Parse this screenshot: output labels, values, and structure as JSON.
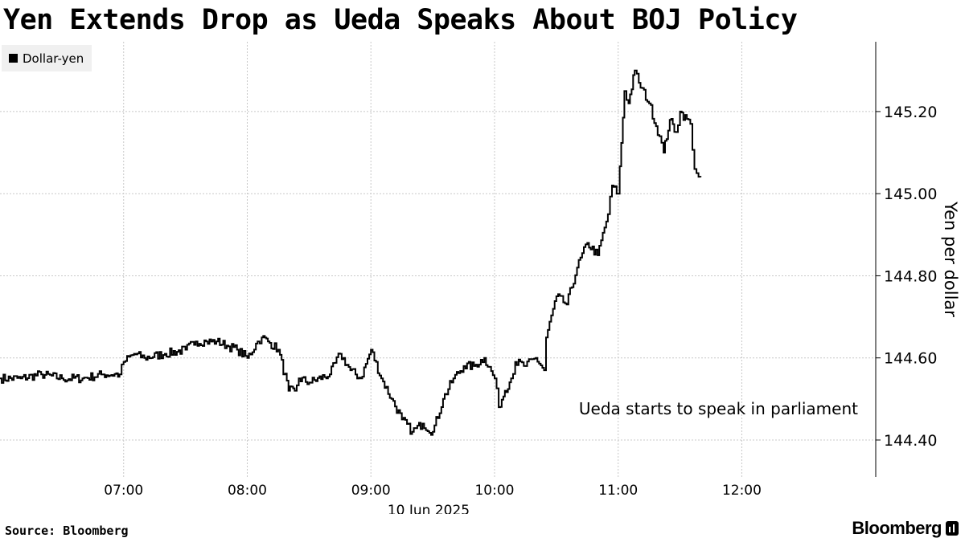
{
  "page": {
    "source": "Source: Bloomberg",
    "brand": "Bloomberg",
    "brand_icon": "bloomberg-terminal-icon"
  },
  "chart_data": {
    "type": "line",
    "title": "Yen Extends Drop as Ueda Speaks About BOJ Policy",
    "xlabel": "10 Jun 2025",
    "ylabel": "Yen per dollar",
    "y_ticks": [
      "144.40",
      "144.60",
      "144.80",
      "145.00",
      "145.20"
    ],
    "x_ticks": [
      "07:00",
      "08:00",
      "09:00",
      "10:00",
      "11:00",
      "12:00"
    ],
    "ylim": [
      144.31,
      145.37
    ],
    "xlim": [
      "06:00",
      "13:05"
    ],
    "grid": true,
    "legend_position": "top-left",
    "annotation": {
      "text": "Ueda starts to speak in parliament",
      "x": "11:00"
    },
    "colors": {
      "line": "#000000",
      "grid": "#c8c8c8"
    },
    "series": [
      {
        "name": "Dollar-yen",
        "x": [
          "06:00",
          "06:10",
          "06:20",
          "06:30",
          "06:40",
          "06:50",
          "06:58",
          "07:00",
          "07:05",
          "07:10",
          "07:20",
          "07:30",
          "07:35",
          "07:40",
          "07:45",
          "07:50",
          "07:55",
          "08:00",
          "08:05",
          "08:07",
          "08:10",
          "08:15",
          "08:20",
          "08:23",
          "08:25",
          "08:30",
          "08:40",
          "08:45",
          "08:50",
          "08:55",
          "09:00",
          "09:05",
          "09:10",
          "09:15",
          "09:20",
          "09:25",
          "09:30",
          "09:35",
          "09:40",
          "09:45",
          "09:50",
          "09:55",
          "10:00",
          "10:02",
          "10:05",
          "10:08",
          "10:10",
          "10:15",
          "10:20",
          "10:24",
          "10:25",
          "10:30",
          "10:35",
          "10:40",
          "10:45",
          "10:50",
          "10:55",
          "10:57",
          "11:00",
          "11:03",
          "11:05",
          "11:08",
          "11:10",
          "11:15",
          "11:20",
          "11:22",
          "11:25",
          "11:28",
          "11:30",
          "11:35",
          "11:37",
          "11:38",
          "11:40"
        ],
        "y": [
          144.55,
          144.55,
          144.56,
          144.55,
          144.55,
          144.56,
          144.56,
          144.59,
          144.61,
          144.6,
          144.61,
          144.62,
          144.64,
          144.64,
          144.64,
          144.63,
          144.62,
          144.6,
          144.64,
          144.65,
          144.64,
          144.62,
          144.52,
          144.52,
          144.55,
          144.54,
          144.56,
          144.61,
          144.57,
          144.55,
          144.62,
          144.55,
          144.5,
          144.45,
          144.42,
          144.44,
          144.42,
          144.5,
          144.55,
          144.58,
          144.58,
          144.6,
          144.55,
          144.48,
          144.52,
          144.55,
          144.59,
          144.58,
          144.6,
          144.57,
          144.65,
          144.75,
          144.73,
          144.82,
          144.88,
          144.85,
          144.95,
          145.02,
          145.0,
          145.25,
          145.22,
          145.3,
          145.27,
          145.22,
          145.14,
          145.1,
          145.18,
          145.15,
          145.2,
          145.17,
          145.06,
          145.05,
          145.04
        ]
      }
    ]
  }
}
